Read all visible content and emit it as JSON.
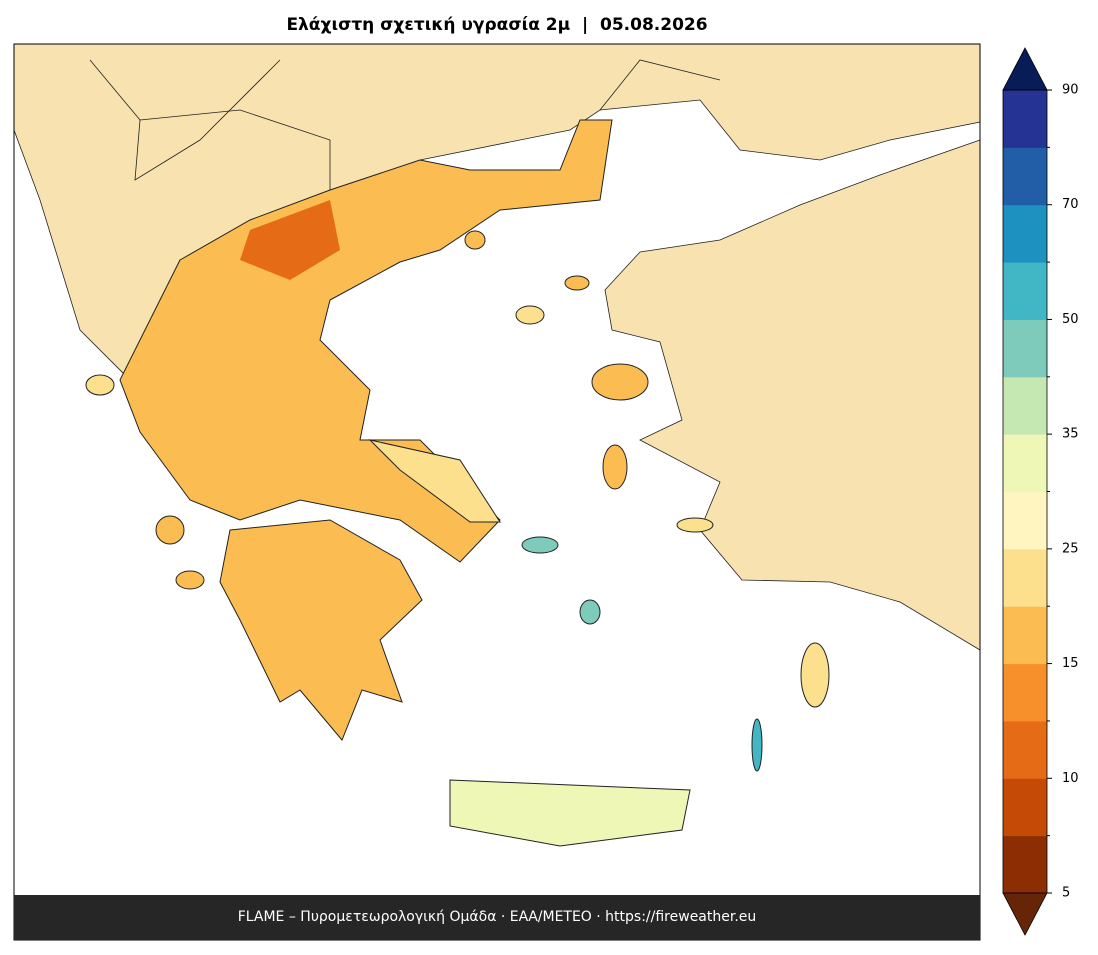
{
  "title": "Ελάχιστη σχετική υγρασία 2μ  |  05.08.2026",
  "footer": "FLAME – Πυρομετεωρολογική Ομάδα · ΕΑΑ/METEO · https://fireweather.eu",
  "colorbar": {
    "ticks": [
      5,
      10,
      15,
      25,
      35,
      50,
      70,
      90
    ],
    "colors": [
      "#8c2d04",
      "#c44a05",
      "#e56b17",
      "#f7902a",
      "#fbbd52",
      "#fde08e",
      "#fef5c0",
      "#eef7b6",
      "#c5e8b3",
      "#7ecbbb",
      "#41b6c4",
      "#1d91c0",
      "#225ea8",
      "#253494"
    ],
    "under_color": "#662506",
    "over_color": "#081d58"
  }
}
